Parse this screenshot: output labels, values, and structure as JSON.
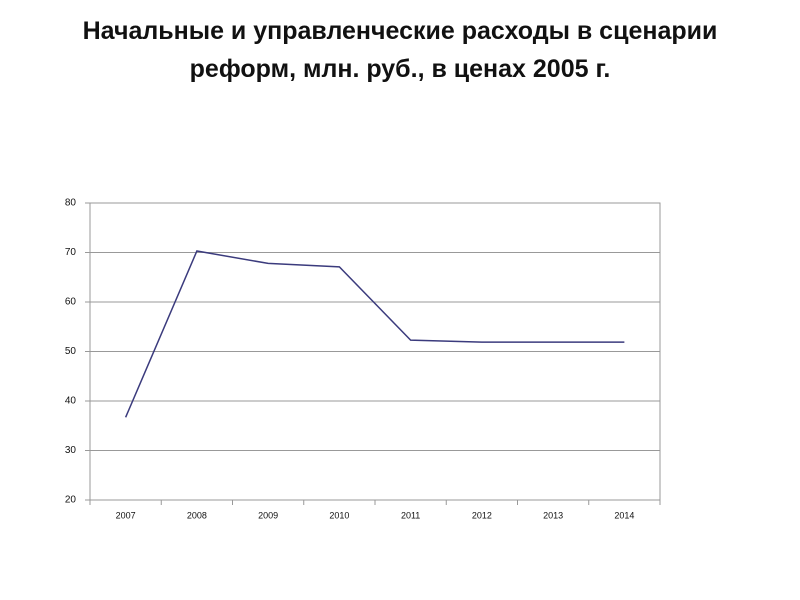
{
  "chart_data": {
    "type": "line",
    "title": "Начальные и управленческие расходы в сценарии реформ, млн. руб., в ценах 2005 г.",
    "categories": [
      "2007",
      "2008",
      "2009",
      "2010",
      "2011",
      "2012",
      "2013",
      "2014"
    ],
    "series": [
      {
        "color": "#3b3b7d",
        "values": [
          36.7,
          70.3,
          67.8,
          67.1,
          52.3,
          51.9,
          51.9,
          51.9
        ]
      }
    ],
    "ylim": [
      20,
      80
    ],
    "yticks": [
      20,
      30,
      40,
      50,
      60,
      70,
      80
    ],
    "grid": true
  }
}
